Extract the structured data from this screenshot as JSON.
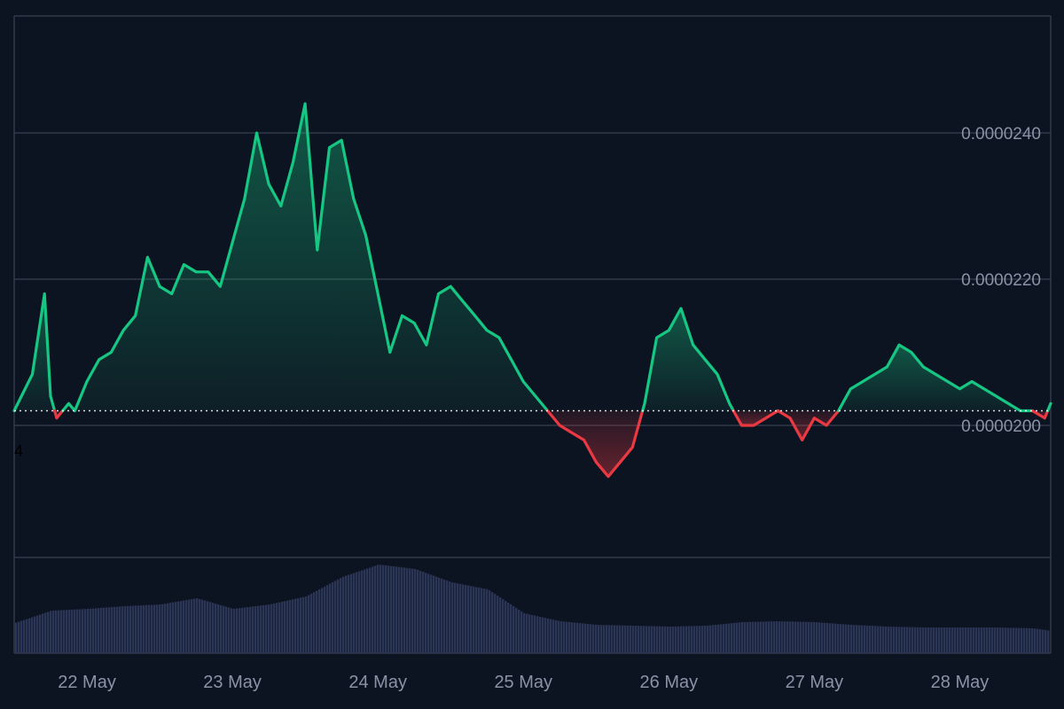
{
  "colors": {
    "background": "#0d1421",
    "grid": "#323a4a",
    "up_line": "#16c784",
    "down_line": "#ea3943",
    "volume_bar": "#2b3555",
    "baseline_dots": "#ffffff",
    "tick_text": "#8a93a6"
  },
  "stray_label": "4",
  "chart_data": {
    "type": "area",
    "title": "",
    "xlabel": "",
    "ylabel": "",
    "ylim": [
      1.84e-05,
      2.56e-05
    ],
    "y_ticks": [
      "0.0000200",
      "0.0000220",
      "0.0000240"
    ],
    "y_tick_values": [
      2e-05,
      2.2e-05,
      2.4e-05
    ],
    "baseline": 2.02e-05,
    "baseline_style": "dotted",
    "x_range": [
      "2024-05-21 12:00",
      "2024-05-28 15:00"
    ],
    "x_ticks": [
      "22 May",
      "23 May",
      "24 May",
      "25 May",
      "26 May",
      "27 May",
      "28 May"
    ],
    "x_tick_dates": [
      "2024-05-22",
      "2024-05-23",
      "2024-05-24",
      "2024-05-25",
      "2024-05-26",
      "2024-05-27",
      "2024-05-28"
    ],
    "grid": "horizontal",
    "coloring": "green above baseline, red below baseline",
    "series": [
      {
        "x": [
          "2024-05-21 12:00",
          "2024-05-21 15:00",
          "2024-05-21 17:00",
          "2024-05-21 18:00",
          "2024-05-21 19:00",
          "2024-05-21 21:00",
          "2024-05-21 22:00",
          "2024-05-22 00:00",
          "2024-05-22 02:00",
          "2024-05-22 04:00",
          "2024-05-22 06:00",
          "2024-05-22 08:00",
          "2024-05-22 10:00",
          "2024-05-22 12:00",
          "2024-05-22 14:00",
          "2024-05-22 16:00",
          "2024-05-22 18:00",
          "2024-05-22 20:00",
          "2024-05-22 22:00",
          "2024-05-23 00:00",
          "2024-05-23 02:00",
          "2024-05-23 04:00",
          "2024-05-23 06:00",
          "2024-05-23 08:00",
          "2024-05-23 10:00",
          "2024-05-23 12:00",
          "2024-05-23 14:00",
          "2024-05-23 16:00",
          "2024-05-23 18:00",
          "2024-05-23 20:00",
          "2024-05-23 22:00",
          "2024-05-24 00:00",
          "2024-05-24 02:00",
          "2024-05-24 04:00",
          "2024-05-24 06:00",
          "2024-05-24 08:00",
          "2024-05-24 10:00",
          "2024-05-24 12:00",
          "2024-05-24 14:00",
          "2024-05-24 16:00",
          "2024-05-24 18:00",
          "2024-05-24 20:00",
          "2024-05-24 22:00",
          "2024-05-25 00:00",
          "2024-05-25 02:00",
          "2024-05-25 04:00",
          "2024-05-25 06:00",
          "2024-05-25 08:00",
          "2024-05-25 10:00",
          "2024-05-25 12:00",
          "2024-05-25 14:00",
          "2024-05-25 16:00",
          "2024-05-25 18:00",
          "2024-05-25 20:00",
          "2024-05-25 22:00",
          "2024-05-26 00:00",
          "2024-05-26 02:00",
          "2024-05-26 04:00",
          "2024-05-26 06:00",
          "2024-05-26 08:00",
          "2024-05-26 10:00",
          "2024-05-26 12:00",
          "2024-05-26 14:00",
          "2024-05-26 16:00",
          "2024-05-26 18:00",
          "2024-05-26 20:00",
          "2024-05-26 22:00",
          "2024-05-27 00:00",
          "2024-05-27 02:00",
          "2024-05-27 04:00",
          "2024-05-27 06:00",
          "2024-05-27 08:00",
          "2024-05-27 10:00",
          "2024-05-27 12:00",
          "2024-05-27 14:00",
          "2024-05-27 16:00",
          "2024-05-27 18:00",
          "2024-05-27 20:00",
          "2024-05-27 22:00",
          "2024-05-28 00:00",
          "2024-05-28 02:00",
          "2024-05-28 04:00",
          "2024-05-28 06:00",
          "2024-05-28 08:00",
          "2024-05-28 10:00",
          "2024-05-28 12:00",
          "2024-05-28 14:00",
          "2024-05-28 15:00"
        ],
        "values": [
          2.02e-05,
          2.07e-05,
          2.18e-05,
          2.04e-05,
          2.01e-05,
          2.03e-05,
          2.02e-05,
          2.06e-05,
          2.09e-05,
          2.1e-05,
          2.13e-05,
          2.15e-05,
          2.23e-05,
          2.19e-05,
          2.18e-05,
          2.22e-05,
          2.21e-05,
          2.21e-05,
          2.19e-05,
          2.25e-05,
          2.31e-05,
          2.4e-05,
          2.33e-05,
          2.3e-05,
          2.36e-05,
          2.44e-05,
          2.24e-05,
          2.38e-05,
          2.39e-05,
          2.31e-05,
          2.26e-05,
          2.18e-05,
          2.1e-05,
          2.15e-05,
          2.14e-05,
          2.11e-05,
          2.18e-05,
          2.19e-05,
          2.17e-05,
          2.15e-05,
          2.13e-05,
          2.12e-05,
          2.09e-05,
          2.06e-05,
          2.04e-05,
          2.02e-05,
          2e-05,
          1.99e-05,
          1.98e-05,
          1.95e-05,
          1.93e-05,
          1.95e-05,
          1.97e-05,
          2.03e-05,
          2.12e-05,
          2.13e-05,
          2.16e-05,
          2.11e-05,
          2.09e-05,
          2.07e-05,
          2.03e-05,
          2e-05,
          2e-05,
          2.01e-05,
          2.02e-05,
          2.01e-05,
          1.98e-05,
          2.01e-05,
          2e-05,
          2.02e-05,
          2.05e-05,
          2.06e-05,
          2.07e-05,
          2.08e-05,
          2.11e-05,
          2.1e-05,
          2.08e-05,
          2.07e-05,
          2.06e-05,
          2.05e-05,
          2.06e-05,
          2.05e-05,
          2.04e-05,
          2.03e-05,
          2.02e-05,
          2.02e-05,
          2.01e-05,
          2.03e-05
        ]
      }
    ],
    "volume": {
      "type": "bar",
      "x": [
        "2024-05-21 12:00",
        "2024-05-21 18:00",
        "2024-05-22 00:00",
        "2024-05-22 06:00",
        "2024-05-22 12:00",
        "2024-05-22 18:00",
        "2024-05-23 00:00",
        "2024-05-23 06:00",
        "2024-05-23 12:00",
        "2024-05-23 18:00",
        "2024-05-24 00:00",
        "2024-05-24 06:00",
        "2024-05-24 12:00",
        "2024-05-24 18:00",
        "2024-05-25 00:00",
        "2024-05-25 06:00",
        "2024-05-25 12:00",
        "2024-05-25 18:00",
        "2024-05-26 00:00",
        "2024-05-26 06:00",
        "2024-05-26 12:00",
        "2024-05-26 18:00",
        "2024-05-27 00:00",
        "2024-05-27 06:00",
        "2024-05-27 12:00",
        "2024-05-27 18:00",
        "2024-05-28 00:00",
        "2024-05-28 06:00",
        "2024-05-28 12:00",
        "2024-05-28 15:00"
      ],
      "relative_values": [
        0.34,
        0.48,
        0.5,
        0.53,
        0.55,
        0.62,
        0.5,
        0.55,
        0.64,
        0.86,
        1.0,
        0.95,
        0.8,
        0.72,
        0.45,
        0.36,
        0.32,
        0.31,
        0.3,
        0.31,
        0.35,
        0.36,
        0.35,
        0.32,
        0.3,
        0.29,
        0.29,
        0.29,
        0.28,
        0.25
      ]
    }
  }
}
